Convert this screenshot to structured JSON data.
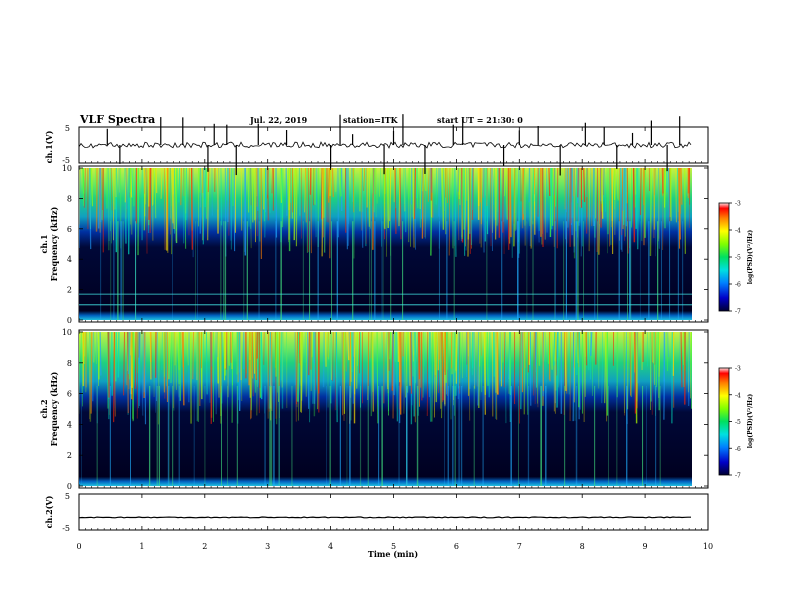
{
  "header": {
    "title": "VLF Spectra",
    "date": "Jul. 22, 2019",
    "station": "station=ITK",
    "start": "start UT =  21:30: 0"
  },
  "chart_data": [
    {
      "type": "line",
      "name": "ch1-waveform",
      "ylabel": "ch.1(V)",
      "ylim": [
        -5,
        5
      ],
      "yticks": [
        "5",
        "-5"
      ],
      "xlim": [
        0,
        10
      ],
      "baseline": 0,
      "x_spikes": [
        0.45,
        0.65,
        1.3,
        1.65,
        2.05,
        2.15,
        2.35,
        2.5,
        2.85,
        3.3,
        4.0,
        4.15,
        4.35,
        4.85,
        5.0,
        5.15,
        5.5,
        5.95,
        6.1,
        6.75,
        7.0,
        7.3,
        7.65,
        8.05,
        8.35,
        8.55,
        8.8,
        9.1,
        9.35,
        9.55
      ]
    },
    {
      "type": "heatmap",
      "name": "ch1-spectrogram",
      "ylabel": "ch.1\nFrequency (kHz)",
      "ylim": [
        0,
        10
      ],
      "yticks": [
        0,
        2,
        4,
        6,
        8,
        10
      ],
      "xlim": [
        0,
        9.8
      ],
      "colorbar": {
        "label": "log(PSD)(V²/Hz)",
        "range": [
          -7,
          -3
        ],
        "ticks": [
          "-3",
          "-4",
          "-5",
          "-6",
          "-7"
        ]
      },
      "lines_khz": [
        1.0,
        1.7
      ]
    },
    {
      "type": "heatmap",
      "name": "ch2-spectrogram",
      "ylabel": "ch.2\nFrequency (kHz)",
      "ylim": [
        0,
        10
      ],
      "yticks": [
        0,
        2,
        4,
        6,
        8,
        10
      ],
      "xlim": [
        0,
        9.8
      ],
      "colorbar": {
        "label": "log(PSD)(V²/Hz)",
        "range": [
          -7,
          -3
        ],
        "ticks": [
          "-3",
          "-4",
          "-5",
          "-6",
          "-7"
        ]
      }
    },
    {
      "type": "line",
      "name": "ch2-waveform",
      "ylabel": "ch.2(V)",
      "ylim": [
        -5,
        5
      ],
      "yticks": [
        "5",
        "-5"
      ],
      "xlim": [
        0,
        10
      ],
      "baseline": -1.5
    }
  ],
  "xaxis": {
    "label": "Time (min)",
    "ticks": [
      "0",
      "1",
      "2",
      "3",
      "4",
      "5",
      "6",
      "7",
      "8",
      "9",
      "10"
    ]
  },
  "colors": {
    "scale": [
      "#000033",
      "#0000c8",
      "#0080ff",
      "#00e0e0",
      "#00e060",
      "#80ff00",
      "#ffff00",
      "#ff8000",
      "#ff0000",
      "#ffe0e0"
    ]
  }
}
